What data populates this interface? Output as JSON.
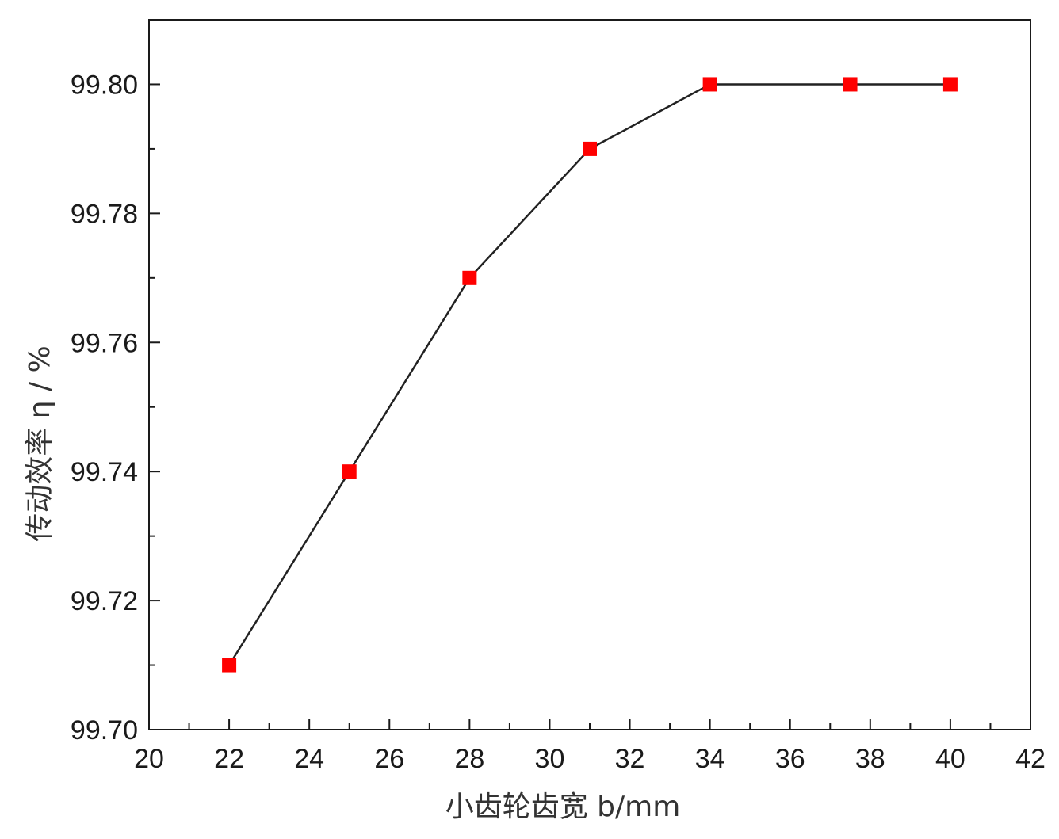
{
  "chart_data": {
    "type": "line",
    "title": "",
    "xlabel": "小齿轮齿宽 b/mm",
    "ylabel": "传动效率 η / %",
    "xlim": [
      20,
      42
    ],
    "ylim": [
      99.7,
      99.81
    ],
    "x_ticks": [
      20,
      22,
      24,
      26,
      28,
      30,
      32,
      34,
      36,
      38,
      40,
      42
    ],
    "y_ticks": [
      99.7,
      99.72,
      99.74,
      99.76,
      99.78,
      99.8
    ],
    "x_tick_labels": [
      "20",
      "22",
      "24",
      "26",
      "28",
      "30",
      "32",
      "34",
      "36",
      "38",
      "40",
      "42"
    ],
    "y_tick_labels": [
      "99.70",
      "99.72",
      "99.74",
      "99.76",
      "99.78",
      "99.80"
    ],
    "grid": false,
    "series": [
      {
        "x": [
          22,
          25,
          28,
          31,
          34,
          37.5,
          40
        ],
        "y": [
          99.71,
          99.74,
          99.77,
          99.79,
          99.8,
          99.8,
          99.8
        ],
        "marker": "square",
        "marker_color": "#ff0000",
        "line_color": "#222222"
      }
    ]
  }
}
